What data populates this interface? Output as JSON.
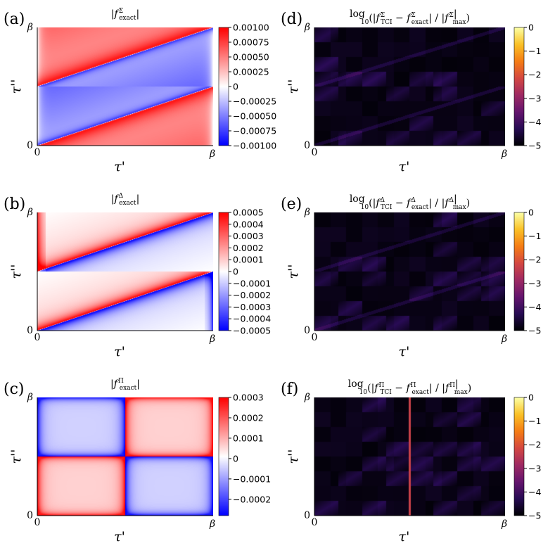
{
  "chart_data": [
    {
      "panel": "(a)",
      "type": "heatmap",
      "colormap": "bwr",
      "title": "|f^Σ_exact|",
      "title_parts": [
        "|",
        "f",
        "Σ",
        "exact",
        "|"
      ],
      "xlabel": "τ'",
      "ylabel": "τ''",
      "x_ticks": [
        "0",
        "β"
      ],
      "y_ticks": [
        "0",
        "β"
      ],
      "pattern": "sigma",
      "clim": [
        -0.001,
        0.001
      ],
      "colorbar_ticks": [
        0.001,
        0.00075,
        0.0005,
        0.00025,
        0,
        -0.00025,
        -0.0005,
        -0.00075,
        -0.001
      ],
      "colorbar_labels": [
        "0.00100",
        "0.00075",
        "0.00050",
        "0.00025",
        "0",
        "−0.00025",
        "−0.00050",
        "−0.00075",
        "−0.00100"
      ]
    },
    {
      "panel": "(d)",
      "type": "heatmap",
      "colormap": "inferno",
      "title": "log10(|f^Σ_TCI − f^Σ_exact| / |f^Σ|max)",
      "title_parts": [
        "log",
        "10",
        "(|",
        "f",
        "Σ",
        "TCI",
        " − ",
        "f",
        "Σ",
        "exact",
        "| / |",
        "f",
        "Σ",
        "|",
        "max",
        ")"
      ],
      "xlabel": "τ'",
      "ylabel": "τ''",
      "x_ticks": [
        "0",
        "β"
      ],
      "y_ticks": [
        "0",
        "β"
      ],
      "pattern": "error-sigma",
      "clim": [
        -5,
        0
      ],
      "colorbar_ticks": [
        0,
        -1,
        -2,
        -3,
        -4,
        -5
      ],
      "colorbar_labels": [
        "0",
        "−1",
        "−2",
        "−3",
        "−4",
        "−5"
      ]
    },
    {
      "panel": "(b)",
      "type": "heatmap",
      "colormap": "bwr",
      "title": "|f^Δ_exact|",
      "title_parts": [
        "|",
        "f",
        "Δ",
        "exact",
        "|"
      ],
      "xlabel": "τ'",
      "ylabel": "τ''",
      "x_ticks": [
        "0",
        "β"
      ],
      "y_ticks": [
        "0",
        "β"
      ],
      "pattern": "delta",
      "clim": [
        -0.0005,
        0.0005
      ],
      "colorbar_ticks": [
        0.0005,
        0.0004,
        0.0003,
        0.0002,
        0.0001,
        0,
        -0.0001,
        -0.0002,
        -0.0003,
        -0.0004,
        -0.0005
      ],
      "colorbar_labels": [
        "0.0005",
        "0.0004",
        "0.0003",
        "0.0002",
        "0.0001",
        "0",
        "−0.0001",
        "−0.0002",
        "−0.0003",
        "−0.0004",
        "−0.0005"
      ]
    },
    {
      "panel": "(e)",
      "type": "heatmap",
      "colormap": "inferno",
      "title": "log10(|f^Δ_TCI − f^Δ_exact| / |f^Δ|max)",
      "title_parts": [
        "log",
        "10",
        "(|",
        "f",
        "Δ",
        "TCI",
        " − ",
        "f",
        "Δ",
        "exact",
        "| / |",
        "f",
        "Δ",
        "|",
        "max",
        ")"
      ],
      "xlabel": "τ'",
      "ylabel": "τ''",
      "x_ticks": [
        "0",
        "β"
      ],
      "y_ticks": [
        "0",
        "β"
      ],
      "pattern": "error-delta",
      "clim": [
        -5,
        0
      ],
      "colorbar_ticks": [
        0,
        -1,
        -2,
        -3,
        -4,
        -5
      ],
      "colorbar_labels": [
        "0",
        "−1",
        "−2",
        "−3",
        "−4",
        "−5"
      ]
    },
    {
      "panel": "(c)",
      "type": "heatmap",
      "colormap": "bwr",
      "title": "|f^Π_exact|",
      "title_parts": [
        "|",
        "f",
        "Π",
        "exact",
        "|"
      ],
      "xlabel": "τ'",
      "ylabel": "τ''",
      "x_ticks": [
        "0",
        "β"
      ],
      "y_ticks": [
        "0",
        "β"
      ],
      "pattern": "pi",
      "clim": [
        -0.00028,
        0.0003
      ],
      "colorbar_ticks": [
        0.0003,
        0.0002,
        0.0001,
        0,
        -0.0001,
        -0.0002
      ],
      "colorbar_labels": [
        "0.0003",
        "0.0002",
        "0.0001",
        "0",
        "−0.0001",
        "−0.0002"
      ]
    },
    {
      "panel": "(f)",
      "type": "heatmap",
      "colormap": "inferno",
      "title": "log10(|f^Π_TCI − f^Π_exact| / |f^Π|max)",
      "title_parts": [
        "log",
        "10",
        "(|",
        "f",
        "Π",
        "TCI",
        " − ",
        "f",
        "Π",
        "exact",
        "| / |",
        "f",
        "Π",
        "|",
        "max",
        ")"
      ],
      "xlabel": "τ'",
      "ylabel": "τ''",
      "x_ticks": [
        "0",
        "β"
      ],
      "y_ticks": [
        "0",
        "β"
      ],
      "pattern": "error-pi",
      "clim": [
        -5,
        0
      ],
      "colorbar_ticks": [
        0,
        -1,
        -2,
        -3,
        -4,
        -5
      ],
      "colorbar_labels": [
        "0",
        "−1",
        "−2",
        "−3",
        "−4",
        "−5"
      ]
    }
  ]
}
